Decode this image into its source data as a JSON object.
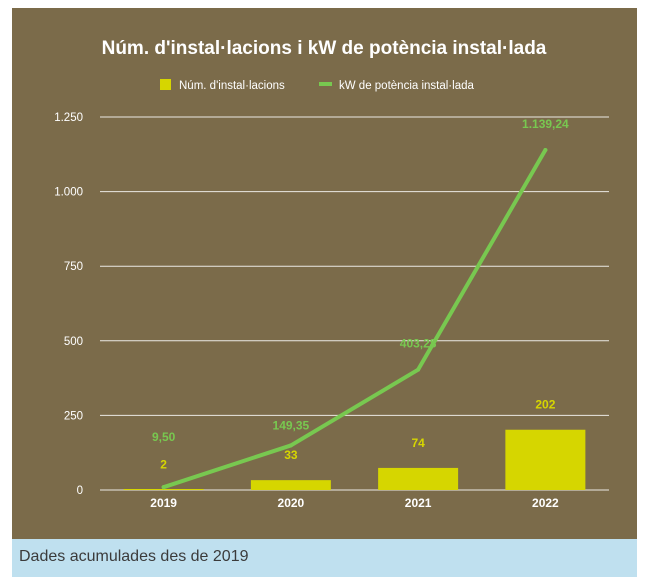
{
  "chart_data": {
    "type": "bar+line",
    "title": "Núm. d'instal·lacions i kW de potència instal·lada",
    "categories": [
      "2019",
      "2020",
      "2021",
      "2022"
    ],
    "series": [
      {
        "name": "Núm. d'instal·lacions",
        "kind": "bar",
        "color": "#d6d600",
        "values": [
          2,
          33,
          74,
          202
        ],
        "labels": [
          "2",
          "33",
          "74",
          "202"
        ]
      },
      {
        "name": "kW de potència instal·lada",
        "kind": "line",
        "color": "#78c850",
        "values": [
          9.5,
          149.35,
          403.28,
          1139.24
        ],
        "labels": [
          "9,50",
          "149,35",
          "403,28",
          "1.139,24"
        ]
      }
    ],
    "ylim": [
      0,
      1250
    ],
    "yticks": [
      0,
      250,
      500,
      750,
      1000,
      1250
    ],
    "ytick_labels": [
      "0",
      "250",
      "500",
      "750",
      "1.000",
      "1.250"
    ],
    "legend_position": "top",
    "grid": true,
    "background": "#7b6b4a",
    "gridline_color": "#ffffff"
  },
  "caption": "Dades acumulades des de 2019"
}
